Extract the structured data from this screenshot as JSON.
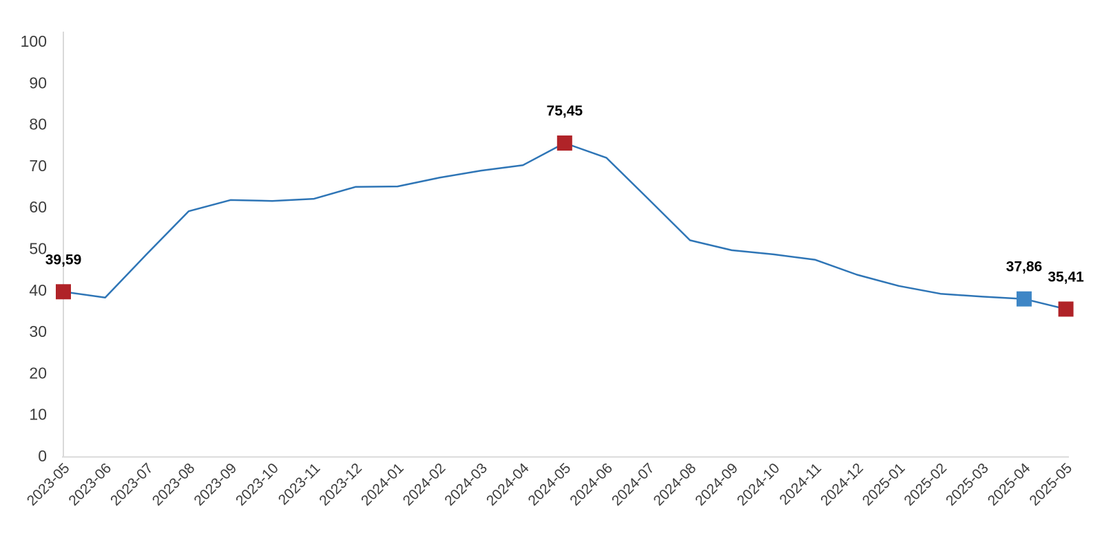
{
  "chart_data": {
    "type": "line",
    "title": "",
    "xlabel": "",
    "ylabel": "",
    "x": [
      "2023-05",
      "2023-06",
      "2023-07",
      "2023-08",
      "2023-09",
      "2023-10",
      "2023-11",
      "2023-12",
      "2024-01",
      "2024-02",
      "2024-03",
      "2024-04",
      "2024-05",
      "2024-06",
      "2024-07",
      "2024-08",
      "2024-09",
      "2024-10",
      "2024-11",
      "2024-12",
      "2025-01",
      "2025-02",
      "2025-03",
      "2025-04",
      "2025-05"
    ],
    "values": [
      39.59,
      38.2,
      48.7,
      59.0,
      61.7,
      61.5,
      62.0,
      64.9,
      65.0,
      67.1,
      68.8,
      70.1,
      75.45,
      71.9,
      62.0,
      52.0,
      49.6,
      48.6,
      47.3,
      43.7,
      41.0,
      39.1,
      38.4,
      37.86,
      35.41
    ],
    "ylim": [
      0,
      100
    ],
    "yticks": [
      0,
      10,
      20,
      30,
      40,
      50,
      60,
      70,
      80,
      90,
      100
    ],
    "grid": false,
    "legend_position": "none",
    "line_color": "#2E75B6",
    "axis_color": "#D9D9D9",
    "tick_label_color": "#3d3d3d",
    "data_label_color": "#000000",
    "markers": [
      {
        "index": 0,
        "label": "39,59",
        "color": "#B02328",
        "shape": "square"
      },
      {
        "index": 12,
        "label": "75,45",
        "color": "#B02328",
        "shape": "square"
      },
      {
        "index": 23,
        "label": "37,86",
        "color": "#3E86C6",
        "shape": "square"
      },
      {
        "index": 24,
        "label": "35,41",
        "color": "#B02328",
        "shape": "square"
      }
    ]
  }
}
